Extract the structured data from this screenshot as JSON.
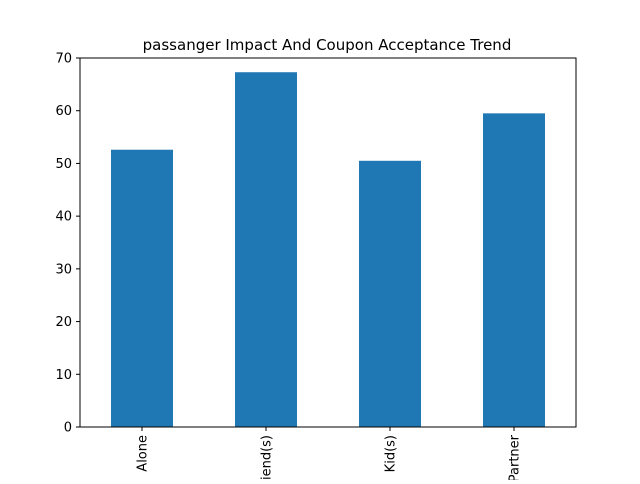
{
  "chart_data": {
    "type": "bar",
    "title": "passanger Impact And Coupon Acceptance Trend",
    "xlabel": "",
    "ylabel": "",
    "categories": [
      "Alone",
      "Friend(s)",
      "Kid(s)",
      "Partner"
    ],
    "values": [
      52.6,
      67.3,
      50.5,
      59.5
    ],
    "ylim": [
      0,
      70
    ],
    "yticks": [
      0,
      10,
      20,
      30,
      40,
      50,
      60,
      70
    ],
    "bar_color": "#1f77b4",
    "grid": false,
    "legend": "none",
    "xtick_rotation": "vertical"
  }
}
